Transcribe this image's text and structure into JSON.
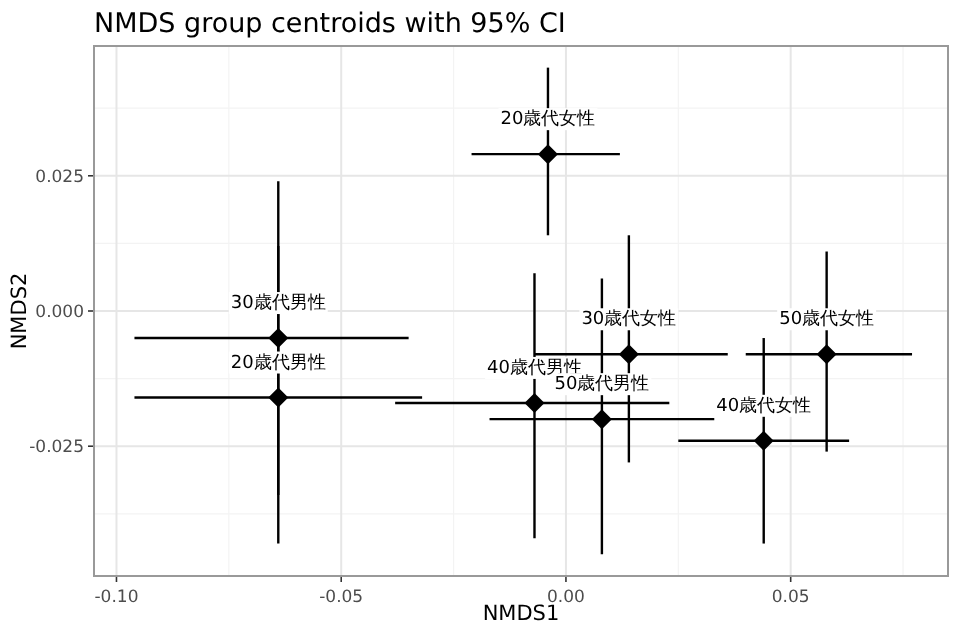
{
  "chart_data": {
    "type": "scatter",
    "title": "NMDS group centroids with 95% CI",
    "xlabel": "NMDS1",
    "ylabel": "NMDS2",
    "xlim": [
      -0.105,
      0.085
    ],
    "ylim": [
      -0.049,
      0.049
    ],
    "xticks": [
      {
        "value": -0.1,
        "label": "-0.10"
      },
      {
        "value": -0.05,
        "label": "-0.05"
      },
      {
        "value": 0,
        "label": "0.00"
      },
      {
        "value": 0.05,
        "label": "0.05"
      }
    ],
    "yticks": [
      {
        "value": -0.025,
        "label": "-0.025"
      },
      {
        "value": 0,
        "label": "0.000"
      },
      {
        "value": 0.025,
        "label": "0.025"
      }
    ],
    "grid": true,
    "marker": "diamond",
    "series": [
      {
        "color": "#000000",
        "x": [
          -0.004,
          -0.064,
          -0.064,
          -0.007,
          0.008,
          0.014,
          0.058,
          0.044
        ],
        "values": [
          0.029,
          -0.005,
          -0.016,
          -0.017,
          -0.02,
          -0.008,
          -0.008,
          -0.024
        ],
        "xerrors": [
          [
            -0.021,
            0.012
          ],
          [
            -0.096,
            -0.035
          ],
          [
            -0.096,
            -0.032
          ],
          [
            -0.038,
            0.023
          ],
          [
            -0.017,
            0.033
          ],
          [
            -0.007,
            0.036
          ],
          [
            0.04,
            0.077
          ],
          [
            0.025,
            0.063
          ]
        ],
        "errors": [
          [
            0.014,
            0.045
          ],
          [
            -0.034,
            0.024
          ],
          [
            -0.043,
            0.012
          ],
          [
            -0.042,
            0.007
          ],
          [
            -0.045,
            0.006
          ],
          [
            -0.028,
            0.014
          ],
          [
            -0.026,
            0.011
          ],
          [
            -0.043,
            -0.005
          ]
        ]
      }
    ],
    "annotations": [
      {
        "text": "20歳代女性",
        "x": -0.004,
        "y": 0.029
      },
      {
        "text": "30歳代男性",
        "x": -0.064,
        "y": -0.005
      },
      {
        "text": "20歳代男性",
        "x": -0.064,
        "y": -0.016
      },
      {
        "text": "40歳代男性",
        "x": -0.007,
        "y": -0.017
      },
      {
        "text": "50歳代男性",
        "x": 0.008,
        "y": -0.02
      },
      {
        "text": "30歳代女性",
        "x": 0.014,
        "y": -0.008
      },
      {
        "text": "50歳代女性",
        "x": 0.058,
        "y": -0.008
      },
      {
        "text": "40歳代女性",
        "x": 0.044,
        "y": -0.024
      }
    ]
  }
}
